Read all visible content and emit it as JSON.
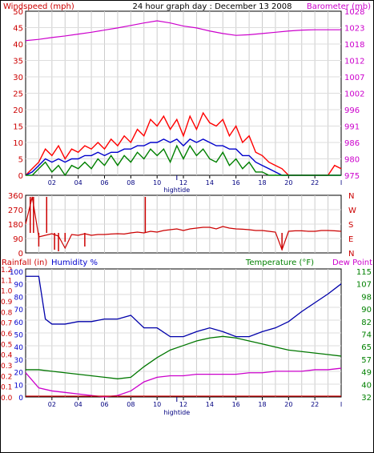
{
  "chart_data": [
    {
      "type": "line",
      "title": "24 hour graph day : December 13 2008",
      "left_axis_label": "Windspeed (mph)",
      "right_axis_label": "Barometer (mb)",
      "left_ticks": [
        "0",
        "5",
        "10",
        "15",
        "20",
        "25",
        "30",
        "35",
        "40",
        "45",
        "50"
      ],
      "right_ticks": [
        "975",
        "980",
        "986",
        "991",
        "996",
        "1002",
        "1007",
        "1012",
        "1018",
        "1023",
        "1028"
      ],
      "x_ticks": [
        "02",
        "04",
        "06",
        "08",
        "10",
        "12",
        "14",
        "16",
        "18",
        "20",
        "22"
      ],
      "x_last_tick": "I",
      "x_marker_label": "hightide",
      "x_marker_hour": 11.5,
      "ylim": [
        0,
        50
      ],
      "ylim_right": [
        975,
        1028
      ],
      "grid": true,
      "colors": {
        "left": "#cc0000",
        "right": "#cc00cc"
      },
      "series": [
        {
          "name": "Barometer",
          "axis": "right",
          "color": "#cc00cc",
          "x": [
            0,
            1,
            2,
            3,
            4,
            5,
            6,
            7,
            8,
            9,
            10,
            11,
            12,
            13,
            14,
            15,
            16,
            17,
            18,
            19,
            20,
            21,
            22,
            23,
            24
          ],
          "y": [
            1018.5,
            1018.9,
            1019.5,
            1020.0,
            1020.6,
            1021.2,
            1021.9,
            1022.6,
            1023.4,
            1024.2,
            1024.9,
            1024.2,
            1023.2,
            1022.6,
            1021.6,
            1020.8,
            1020.2,
            1020.4,
            1020.8,
            1021.2,
            1021.6,
            1021.9,
            1022.0,
            1022.0,
            1022.0
          ]
        },
        {
          "name": "Windspeed gust",
          "axis": "left",
          "color": "#ff0000",
          "x": [
            0,
            0.5,
            1,
            1.5,
            2,
            2.5,
            3,
            3.5,
            4,
            4.5,
            5,
            5.5,
            6,
            6.5,
            7,
            7.5,
            8,
            8.5,
            9,
            9.5,
            10,
            10.5,
            11,
            11.5,
            12,
            12.5,
            13,
            13.5,
            14,
            14.5,
            15,
            15.5,
            16,
            16.5,
            17,
            17.5,
            18,
            18.5,
            19,
            19.5,
            20,
            20.5,
            21,
            21.5,
            22,
            22.5,
            23,
            23.5,
            24
          ],
          "y": [
            0,
            2,
            4,
            8,
            6,
            9,
            5,
            8,
            7,
            9,
            8,
            10,
            8,
            11,
            9,
            12,
            10,
            14,
            12,
            17,
            15,
            18,
            14,
            17,
            12,
            18,
            14,
            19,
            16,
            15,
            17,
            12,
            15,
            10,
            12,
            7,
            6,
            4,
            3,
            2,
            0,
            0,
            0,
            0,
            0,
            0,
            0,
            3,
            2
          ]
        },
        {
          "name": "Windspeed average",
          "axis": "left",
          "color": "#0000cc",
          "x": [
            0,
            0.5,
            1,
            1.5,
            2,
            2.5,
            3,
            3.5,
            4,
            4.5,
            5,
            5.5,
            6,
            6.5,
            7,
            7.5,
            8,
            8.5,
            9,
            9.5,
            10,
            10.5,
            11,
            11.5,
            12,
            12.5,
            13,
            13.5,
            14,
            14.5,
            15,
            15.5,
            16,
            16.5,
            17,
            17.5,
            18,
            18.5,
            19,
            19.5,
            20,
            20.5,
            21,
            21.5,
            22,
            22.5,
            23,
            23.5,
            24
          ],
          "y": [
            0,
            1,
            3,
            5,
            4,
            5,
            4,
            5,
            5,
            6,
            6,
            7,
            6,
            7,
            7,
            8,
            8,
            9,
            9,
            10,
            10,
            11,
            10,
            11,
            9,
            11,
            10,
            11,
            10,
            9,
            9,
            8,
            8,
            6,
            6,
            4,
            3,
            2,
            1,
            0,
            0,
            0,
            0,
            0,
            0,
            0,
            0,
            0,
            0
          ]
        },
        {
          "name": "Windspeed low",
          "axis": "left",
          "color": "#008000",
          "x": [
            0,
            0.5,
            1,
            1.5,
            2,
            2.5,
            3,
            3.5,
            4,
            4.5,
            5,
            5.5,
            6,
            6.5,
            7,
            7.5,
            8,
            8.5,
            9,
            9.5,
            10,
            10.5,
            11,
            11.5,
            12,
            12.5,
            13,
            13.5,
            14,
            14.5,
            15,
            15.5,
            16,
            16.5,
            17,
            17.5,
            18,
            18.5,
            19,
            19.5,
            20,
            20.5,
            21,
            21.5,
            22,
            22.5,
            23,
            23.5,
            24
          ],
          "y": [
            0,
            0,
            2,
            4,
            1,
            3,
            0,
            3,
            2,
            4,
            2,
            5,
            3,
            6,
            3,
            6,
            4,
            7,
            5,
            8,
            6,
            8,
            4,
            9,
            5,
            9,
            6,
            8,
            5,
            4,
            7,
            3,
            5,
            2,
            4,
            1,
            1,
            0,
            0,
            0,
            0,
            0,
            0,
            0,
            0,
            0,
            0,
            0,
            0
          ]
        }
      ]
    },
    {
      "type": "line",
      "left_ticks": [
        "360",
        "270",
        "180",
        "90",
        "0"
      ],
      "right_ticks": [
        "N",
        "W",
        "S",
        "E",
        "N"
      ],
      "ylim": [
        0,
        360
      ],
      "grid": true,
      "colors": {
        "series": "#cc0000"
      },
      "series": [
        {
          "name": "Wind direction",
          "color": "#cc0000",
          "x": [
            0,
            0.5,
            1,
            1.5,
            2,
            2.5,
            3,
            3.5,
            4,
            4.5,
            5,
            5.5,
            6,
            6.5,
            7,
            7.5,
            8,
            8.5,
            9,
            9.5,
            10,
            10.5,
            11,
            11.5,
            12,
            12.5,
            13,
            13.5,
            14,
            14.5,
            15,
            15.5,
            16,
            16.5,
            17,
            17.5,
            18,
            18.5,
            19,
            19.5,
            20,
            20.5,
            21,
            21.5,
            22,
            22.5,
            23,
            23.5,
            24
          ],
          "y": [
            180,
            350,
            100,
            110,
            120,
            105,
            30,
            115,
            110,
            120,
            110,
            115,
            115,
            118,
            120,
            118,
            125,
            130,
            125,
            135,
            130,
            140,
            145,
            150,
            140,
            150,
            155,
            160,
            160,
            150,
            165,
            155,
            150,
            148,
            145,
            140,
            140,
            135,
            130,
            20,
            135,
            138,
            138,
            135,
            135,
            140,
            140,
            138,
            135
          ]
        }
      ],
      "spikes": [
        {
          "hour": 0.35,
          "value": 350
        },
        {
          "hour": 0.6,
          "value": 350
        },
        {
          "hour": 1.0,
          "value": 40
        },
        {
          "hour": 1.6,
          "value": 350
        },
        {
          "hour": 2.2,
          "value": 20
        },
        {
          "hour": 2.5,
          "value": 10
        },
        {
          "hour": 3.0,
          "value": 70
        },
        {
          "hour": 4.5,
          "value": 40
        },
        {
          "hour": 9.1,
          "value": 350
        },
        {
          "hour": 19.5,
          "value": 20
        }
      ]
    },
    {
      "type": "line",
      "label_rainfall": "Rainfall (in)",
      "label_humidity": "Humidity %",
      "label_temperature": "Temperature (°F)",
      "label_dewpoint": "Dew Point",
      "rain_ticks": [
        "0.0",
        "0.1",
        "0.2",
        "0.3",
        "0.4",
        "0.5",
        "0.6",
        "0.7",
        "0.8",
        "0.9",
        "1.0",
        "1.1",
        "1.2"
      ],
      "humidity_ticks": [
        "0",
        "10",
        "20",
        "30",
        "40",
        "50",
        "60",
        "70",
        "80",
        "90",
        "100"
      ],
      "temp_ticks": [
        "32",
        "40",
        "49",
        "57",
        "65",
        "74",
        "82",
        "90",
        "98",
        "107",
        "115"
      ],
      "x_ticks": [
        "02",
        "04",
        "06",
        "08",
        "10",
        "12",
        "14",
        "16",
        "18",
        "20",
        "22"
      ],
      "x_last_tick": "I",
      "x_marker_label": "hightide",
      "x_marker_hour": 11.5,
      "ylim_humidity": [
        0,
        100
      ],
      "ylim_temperature": [
        32,
        115
      ],
      "grid": true,
      "colors": {
        "rainfall": "#cc0000",
        "humidity": "#0000cc",
        "temperature": "#008000",
        "dewpoint": "#cc00cc"
      },
      "series": [
        {
          "name": "Humidity",
          "color": "#0000aa",
          "x": [
            0,
            1,
            1.5,
            2,
            3,
            4,
            5,
            6,
            7,
            8,
            9,
            10,
            11,
            12,
            13,
            14,
            15,
            16,
            17,
            18,
            19,
            20,
            21,
            22,
            23,
            24
          ],
          "y": [
            96,
            96,
            62,
            58,
            58,
            60,
            60,
            62,
            62,
            65,
            55,
            55,
            48,
            48,
            52,
            55,
            52,
            48,
            48,
            52,
            55,
            60,
            68,
            75,
            82,
            90
          ]
        },
        {
          "name": "Temperature",
          "color": "#007700",
          "x": [
            0,
            1,
            2,
            3,
            4,
            5,
            6,
            7,
            8,
            9,
            10,
            11,
            12,
            13,
            14,
            15,
            16,
            17,
            18,
            19,
            20,
            21,
            22,
            23,
            24
          ],
          "y": [
            50,
            50,
            49,
            48,
            47,
            46,
            45,
            44,
            45,
            52,
            58,
            63,
            66,
            69,
            71,
            72,
            71,
            69,
            67,
            65,
            63,
            62,
            61,
            60,
            59
          ]
        },
        {
          "name": "Dew Point",
          "color": "#cc00cc",
          "x": [
            0,
            1,
            2,
            3,
            4,
            5,
            6,
            7,
            8,
            9,
            10,
            11,
            12,
            13,
            14,
            15,
            16,
            17,
            18,
            19,
            20,
            21,
            22,
            23,
            24
          ],
          "y": [
            48,
            38,
            36,
            35,
            34,
            33,
            32,
            33,
            36,
            42,
            45,
            46,
            46,
            47,
            47,
            47,
            47,
            48,
            48,
            49,
            49,
            49,
            50,
            50,
            51
          ]
        },
        {
          "name": "Rainfall",
          "color": "#cc0000",
          "x": [
            0,
            24
          ],
          "y": [
            0,
            0
          ]
        }
      ]
    }
  ]
}
